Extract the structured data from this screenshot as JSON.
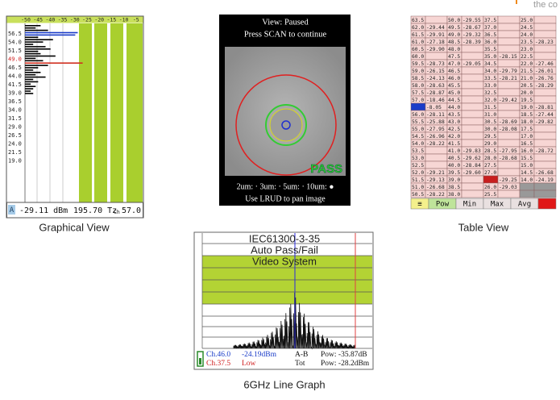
{
  "corner_text": "the co",
  "graphical_view": {
    "caption": "Graphical View",
    "header_ticks": [
      "-50",
      "-45",
      "-40",
      "-35",
      "-30",
      "-25",
      "-20",
      "-15",
      "-10",
      "-5"
    ],
    "channel_labels": [
      "56.5",
      "54.0",
      "51.5",
      "49.0",
      "46.5",
      "44.0",
      "41.5",
      "39.0",
      "36.5",
      "34.0",
      "31.5",
      "29.0",
      "26.5",
      "24.0",
      "21.5",
      "19.0"
    ],
    "bars": [
      {
        "value": -44,
        "color": "#000"
      },
      {
        "value": -46,
        "color": "#000"
      },
      {
        "value": -41,
        "color": "#000"
      },
      {
        "value": -29,
        "color": "#1a3cc8"
      },
      {
        "value": -30,
        "color": "#1a3cc8"
      },
      {
        "value": -45,
        "color": "#000"
      },
      {
        "value": -39,
        "color": "#000"
      },
      {
        "value": -43,
        "color": "#000"
      },
      {
        "value": -47,
        "color": "#000"
      },
      {
        "value": -42,
        "color": "#000"
      },
      {
        "value": -40,
        "color": "#000"
      },
      {
        "value": -45,
        "color": "#000"
      },
      {
        "value": -44,
        "color": "#000"
      },
      {
        "value": -38,
        "color": "#000"
      },
      {
        "value": -46,
        "color": "#000"
      },
      {
        "value": -43,
        "color": "#000"
      },
      {
        "value": -27,
        "color": "#d03020"
      },
      {
        "value": -41,
        "color": "#000"
      },
      {
        "value": -45,
        "color": "#000"
      },
      {
        "value": -47,
        "color": "#000"
      },
      {
        "value": -44,
        "color": "#000"
      },
      {
        "value": -46,
        "color": "#000"
      },
      {
        "value": -42,
        "color": "#000"
      },
      {
        "value": -47,
        "color": "#000"
      },
      {
        "value": -45,
        "color": "#000"
      },
      {
        "value": -48,
        "color": "#000"
      },
      {
        "value": -46,
        "color": "#000"
      },
      {
        "value": -47,
        "color": "#000"
      },
      {
        "value": -48,
        "color": "#000"
      },
      {
        "value": -47,
        "color": "#000"
      }
    ],
    "footer": {
      "marker": "A",
      "power": "-29.11 dBm",
      "frequency": "195.70 Tz",
      "channel_prefix": "Ch",
      "channel": "57.0"
    }
  },
  "video_view": {
    "status": "View: Paused",
    "prompt": "Press SCAN to continue",
    "result": "PASS",
    "zones": [
      "2um: · 3um: · 5um: · 10um: ●"
    ],
    "hint": "Use LRUD to pan image",
    "caption": [
      "IEC61300-3-35",
      "Auto Pass/Fail",
      "Video System"
    ]
  },
  "table_view": {
    "caption": "Table View",
    "rows": [
      [
        "63.5",
        null,
        "50.0",
        "-29.55",
        "37.5",
        null,
        "25.0",
        null
      ],
      [
        "62.0",
        "-29.44",
        "49.5",
        "-28.67",
        "37.0",
        null,
        "24.5",
        null
      ],
      [
        "61.5",
        "-29.91",
        "49.0",
        "-29.32",
        "36.5",
        null,
        "24.0",
        null
      ],
      [
        "61.0",
        "-27.18",
        "48.5",
        "-28.39",
        "36.0",
        null,
        "23.5",
        "-28.23"
      ],
      [
        "60.5",
        "-29.90",
        "48.0",
        null,
        "35.5",
        null,
        "23.0",
        null
      ],
      [
        "60.0",
        null,
        "47.5",
        null,
        "35.0",
        "-28.15",
        "22.5",
        null
      ],
      [
        "59.5",
        "-28.73",
        "47.0",
        "-29.05",
        "34.5",
        null,
        "22.0",
        "-27.46"
      ],
      [
        "59.0",
        "-26.15",
        "46.5",
        null,
        "34.0",
        "-29.79",
        "21.5",
        "-26.01"
      ],
      [
        "58.5",
        "-24.13",
        "46.0",
        null,
        "33.5",
        "-28.21",
        "21.0",
        "-26.76"
      ],
      [
        "58.0",
        "-28.63",
        "45.5",
        null,
        "33.0",
        null,
        "20.5",
        "-28.29"
      ],
      [
        "57.5",
        "-28.87",
        "45.0",
        null,
        "32.5",
        null,
        "20.0",
        null
      ],
      [
        "57.0",
        "-18.46",
        "44.5",
        null,
        "32.0",
        "-29.42",
        "19.5",
        null
      ],
      [
        null,
        "-8.05",
        "44.0",
        null,
        "31.5",
        null,
        "19.0",
        "-28.81"
      ],
      [
        "56.0",
        "-28.11",
        "43.5",
        null,
        "31.0",
        null,
        "18.5",
        "-27.44"
      ],
      [
        "55.5",
        "-25.88",
        "43.0",
        null,
        "30.5",
        "-28.69",
        "18.0",
        "-29.82"
      ],
      [
        "55.0",
        "-27.95",
        "42.5",
        null,
        "30.0",
        "-28.08",
        "17.5",
        null
      ],
      [
        "54.5",
        "-26.96",
        "42.0",
        null,
        "29.5",
        null,
        "17.0",
        null
      ],
      [
        "54.0",
        "-28.22",
        "41.5",
        null,
        "29.0",
        null,
        "16.5",
        null
      ],
      [
        "53.5",
        null,
        "41.0",
        "-29.83",
        "28.5",
        "-27.95",
        "16.0",
        "-28.72"
      ],
      [
        "53.0",
        null,
        "40.5",
        "-29.62",
        "28.0",
        "-28.68",
        "15.5",
        null
      ],
      [
        "52.5",
        null,
        "40.0",
        "-28.84",
        "27.5",
        null,
        "15.0",
        null
      ],
      [
        "52.0",
        "-29.21",
        "39.5",
        "-29.60",
        "27.0",
        null,
        "14.5",
        "-26.68"
      ],
      [
        "51.5",
        "-29.13",
        "39.0",
        null,
        null,
        "-29.25",
        "14.0",
        "-24.19"
      ],
      [
        "51.0",
        "-26.68",
        "38.5",
        null,
        "26.0",
        "-29.03",
        null,
        null
      ],
      [
        "50.5",
        "-28.22",
        "38.0",
        null,
        "25.5",
        null,
        null,
        null
      ]
    ],
    "toolbar": [
      "≡",
      "Pow",
      "Min",
      "Max",
      "Avg"
    ]
  },
  "line_graph": {
    "caption": "6GHz Line Graph",
    "info": [
      [
        "Ch.46.0",
        "-24.19dBm",
        "A-B",
        "Pow: -35.87dB"
      ],
      [
        "Ch.37.5",
        "Low",
        "Tot",
        "Pow: -28.2dBm"
      ]
    ]
  }
}
